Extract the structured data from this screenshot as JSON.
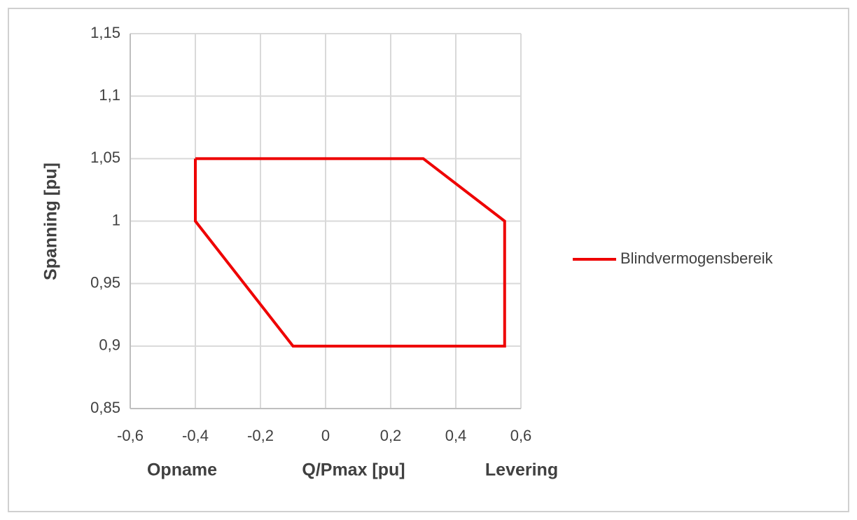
{
  "chart_data": {
    "type": "line",
    "xlabel": "Q/Pmax [pu]",
    "ylabel": "Spanning [pu]",
    "annotations": [
      "Opname",
      "Levering"
    ],
    "x": [
      -0.4,
      0.3,
      0.55,
      0.55,
      -0.1,
      -0.4,
      -0.4
    ],
    "series": [
      {
        "name": "Blindvermogensbereik",
        "color": "#ee0000",
        "values": [
          1.05,
          1.05,
          1.0,
          0.9,
          0.9,
          1.0,
          1.05
        ]
      }
    ],
    "xlim": [
      -0.6,
      0.6
    ],
    "xticks": [
      {
        "value": -0.6,
        "label": "-0,6"
      },
      {
        "value": -0.4,
        "label": "-0,4"
      },
      {
        "value": -0.2,
        "label": "-0,2"
      },
      0,
      {
        "value": 0.2,
        "label": "0,2"
      },
      {
        "value": 0.4,
        "label": "0,4"
      },
      {
        "value": 0.6,
        "label": "0,6"
      }
    ],
    "ylim": [
      0.85,
      1.15
    ],
    "yticks": [
      {
        "value": 0.85,
        "label": "0,85"
      },
      {
        "value": 0.9,
        "label": "0,9"
      },
      {
        "value": 0.95,
        "label": "0,95"
      },
      1,
      {
        "value": 1.05,
        "label": "1,05"
      },
      {
        "value": 1.1,
        "label": "1,1"
      },
      {
        "value": 1.15,
        "label": "1,15"
      }
    ],
    "grid": true,
    "legend": "right"
  }
}
